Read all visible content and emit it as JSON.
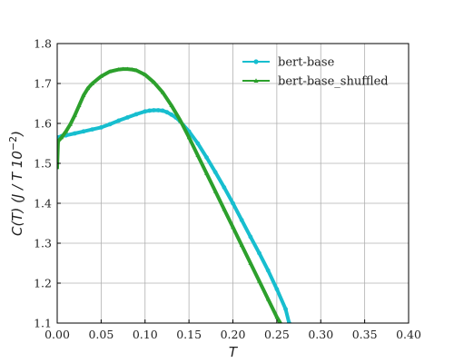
{
  "chart_data": {
    "type": "line",
    "title": "",
    "xlabel": "T",
    "ylabel_main": "C(T)  (J / T 10",
    "ylabel_sup": "−2",
    "ylabel_close": ")",
    "xlim": [
      0.0,
      0.4
    ],
    "ylim": [
      1.1,
      1.8
    ],
    "xticks": [
      "0.00",
      "0.05",
      "0.10",
      "0.15",
      "0.20",
      "0.25",
      "0.30",
      "0.35",
      "0.40"
    ],
    "yticks": [
      "1.1",
      "1.2",
      "1.3",
      "1.4",
      "1.5",
      "1.6",
      "1.7",
      "1.8"
    ],
    "grid": true,
    "legend_position": "top-right",
    "series": [
      {
        "name": "bert-base",
        "color": "#17becf",
        "marker": "circle",
        "x": [
          0.0,
          0.005,
          0.01,
          0.02,
          0.03,
          0.04,
          0.05,
          0.06,
          0.07,
          0.08,
          0.09,
          0.1,
          0.105,
          0.11,
          0.115,
          0.12,
          0.125,
          0.13,
          0.135,
          0.14,
          0.15,
          0.16,
          0.17,
          0.18,
          0.19,
          0.2,
          0.21,
          0.22,
          0.23,
          0.24,
          0.25,
          0.26,
          0.264
        ],
        "y": [
          1.565,
          1.568,
          1.57,
          1.575,
          1.58,
          1.585,
          1.59,
          1.598,
          1.607,
          1.615,
          1.623,
          1.63,
          1.632,
          1.633,
          1.633,
          1.632,
          1.628,
          1.622,
          1.615,
          1.605,
          1.58,
          1.55,
          1.515,
          1.478,
          1.44,
          1.4,
          1.358,
          1.316,
          1.275,
          1.232,
          1.185,
          1.135,
          1.1
        ]
      },
      {
        "name": "bert-base_shuffled",
        "color": "#2ca02c",
        "marker": "triangle",
        "x": [
          0.0,
          0.001,
          0.005,
          0.01,
          0.015,
          0.02,
          0.025,
          0.03,
          0.035,
          0.04,
          0.05,
          0.06,
          0.07,
          0.075,
          0.08,
          0.085,
          0.09,
          0.1,
          0.11,
          0.12,
          0.13,
          0.14,
          0.15,
          0.16,
          0.17,
          0.18,
          0.19,
          0.2,
          0.21,
          0.22,
          0.23,
          0.24,
          0.25,
          0.254
        ],
        "y": [
          1.49,
          1.555,
          1.565,
          1.58,
          1.598,
          1.62,
          1.645,
          1.67,
          1.688,
          1.7,
          1.718,
          1.73,
          1.735,
          1.736,
          1.736,
          1.735,
          1.733,
          1.722,
          1.703,
          1.678,
          1.645,
          1.608,
          1.565,
          1.52,
          1.475,
          1.43,
          1.385,
          1.34,
          1.295,
          1.25,
          1.205,
          1.16,
          1.115,
          1.1
        ]
      }
    ]
  }
}
